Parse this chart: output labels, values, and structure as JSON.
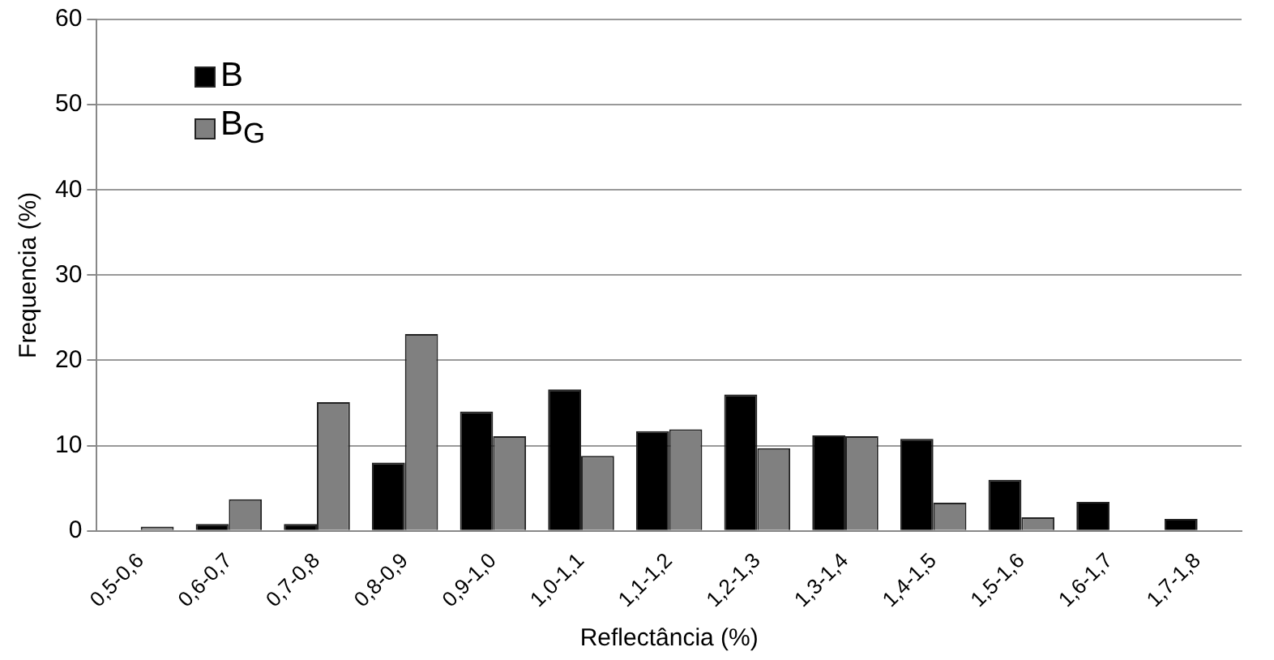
{
  "chart_data": {
    "type": "bar",
    "xlabel": "Reflectância (%)",
    "ylabel": "Frequencia (%)",
    "categories": [
      "0,5-0,6",
      "0,6-0,7",
      "0,7-0,8",
      "0,8-0,9",
      "0,9-1,0",
      "1,0-1,1",
      "1,1-1,2",
      "1,2-1,3",
      "1,3-1,4",
      "1,4-1,5",
      "1,5-1,6",
      "1,6-1,7",
      "1,7-1,8"
    ],
    "series": [
      {
        "name": "B",
        "color": "#000000",
        "values": [
          0,
          0.8,
          0.8,
          8,
          14,
          16.6,
          11.7,
          16,
          11.2,
          10.8,
          6,
          3.4,
          1.4
        ]
      },
      {
        "name": "B$_{G}$",
        "color": "#808080",
        "values": [
          0.5,
          3.7,
          15.1,
          23.1,
          11.1,
          8.8,
          11.9,
          9.7,
          11.1,
          3.3,
          1.6,
          0,
          0
        ]
      }
    ],
    "ylim": [
      0,
      60
    ],
    "yticks": [
      0,
      10,
      20,
      30,
      40,
      50,
      60
    ],
    "grid": "y",
    "legend": "top left"
  }
}
